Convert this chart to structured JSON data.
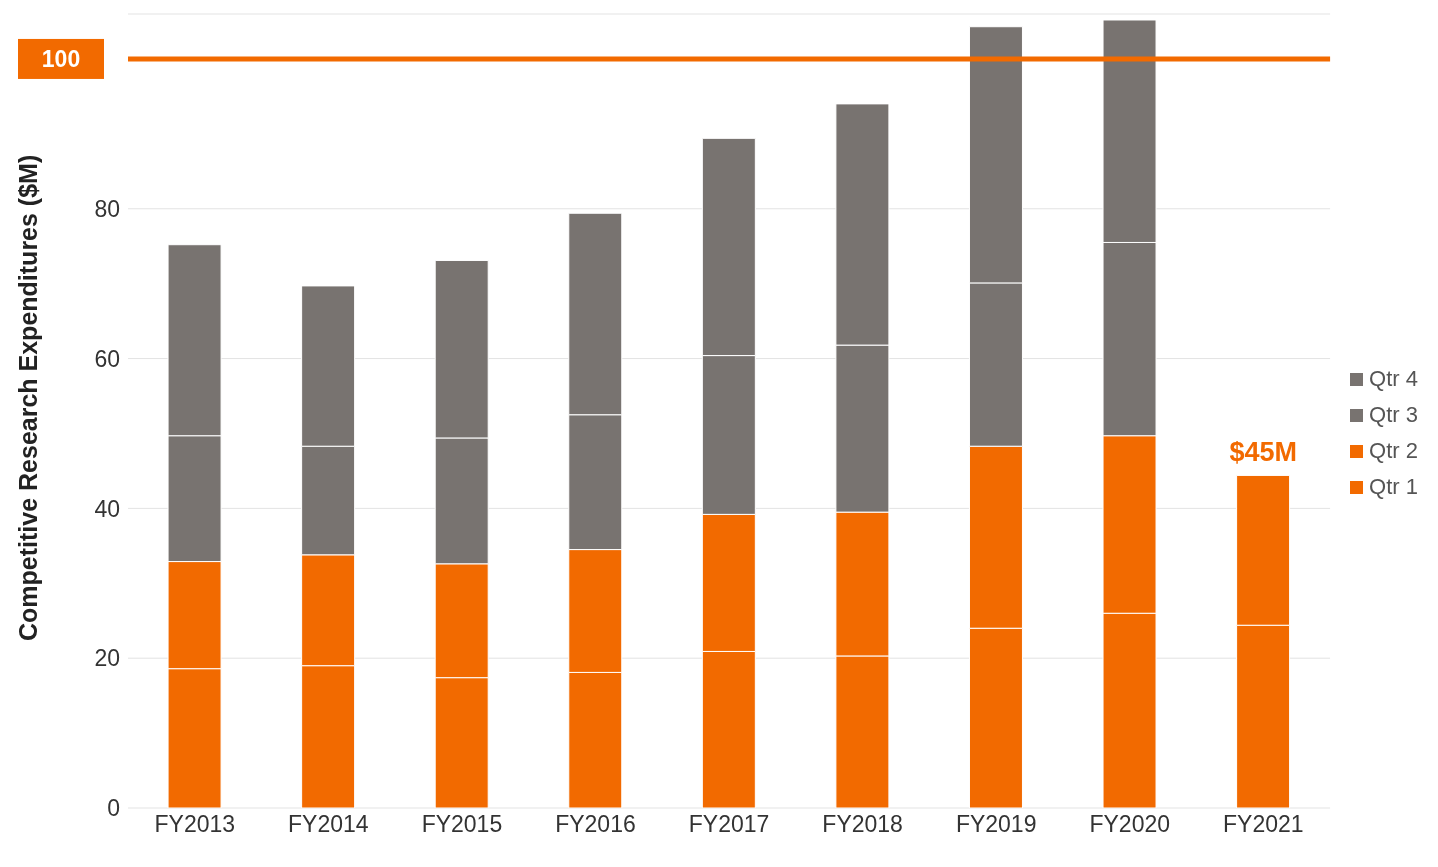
{
  "chart_data": {
    "type": "bar",
    "stacked": true,
    "ylabel": "Competitive Research Expenditures ($M)",
    "categories": [
      "FY2013",
      "FY2014",
      "FY2015",
      "FY2016",
      "FY2017",
      "FY2018",
      "FY2019",
      "FY2020",
      "FY2021"
    ],
    "series": [
      {
        "name": "Qtr 1",
        "color": "#f26a00",
        "values": [
          18.6,
          19.0,
          17.4,
          18.1,
          20.9,
          20.3,
          24.0,
          26.0,
          24.4
        ]
      },
      {
        "name": "Qtr 2",
        "color": "#f26a00",
        "values": [
          14.3,
          14.8,
          15.2,
          16.4,
          18.3,
          19.2,
          24.3,
          23.7,
          20.0
        ]
      },
      {
        "name": "Qtr 3",
        "color": "#787370",
        "values": [
          16.8,
          14.5,
          16.8,
          18.0,
          21.2,
          22.3,
          21.8,
          25.8,
          null
        ]
      },
      {
        "name": "Qtr 4",
        "color": "#787370",
        "values": [
          25.5,
          21.4,
          23.7,
          26.9,
          29.0,
          32.2,
          34.2,
          29.7,
          null
        ]
      }
    ],
    "ylim": [
      0,
      106
    ],
    "yticks": [
      0,
      20,
      40,
      60,
      80
    ],
    "ref_lines": [
      {
        "axis": "y",
        "value": 100,
        "label": "100",
        "color": "#f26a00"
      }
    ],
    "annotations": [
      {
        "text": "$45M",
        "x": "FY2021",
        "y": 44.4
      }
    ],
    "grid": "y",
    "legend": "right"
  }
}
